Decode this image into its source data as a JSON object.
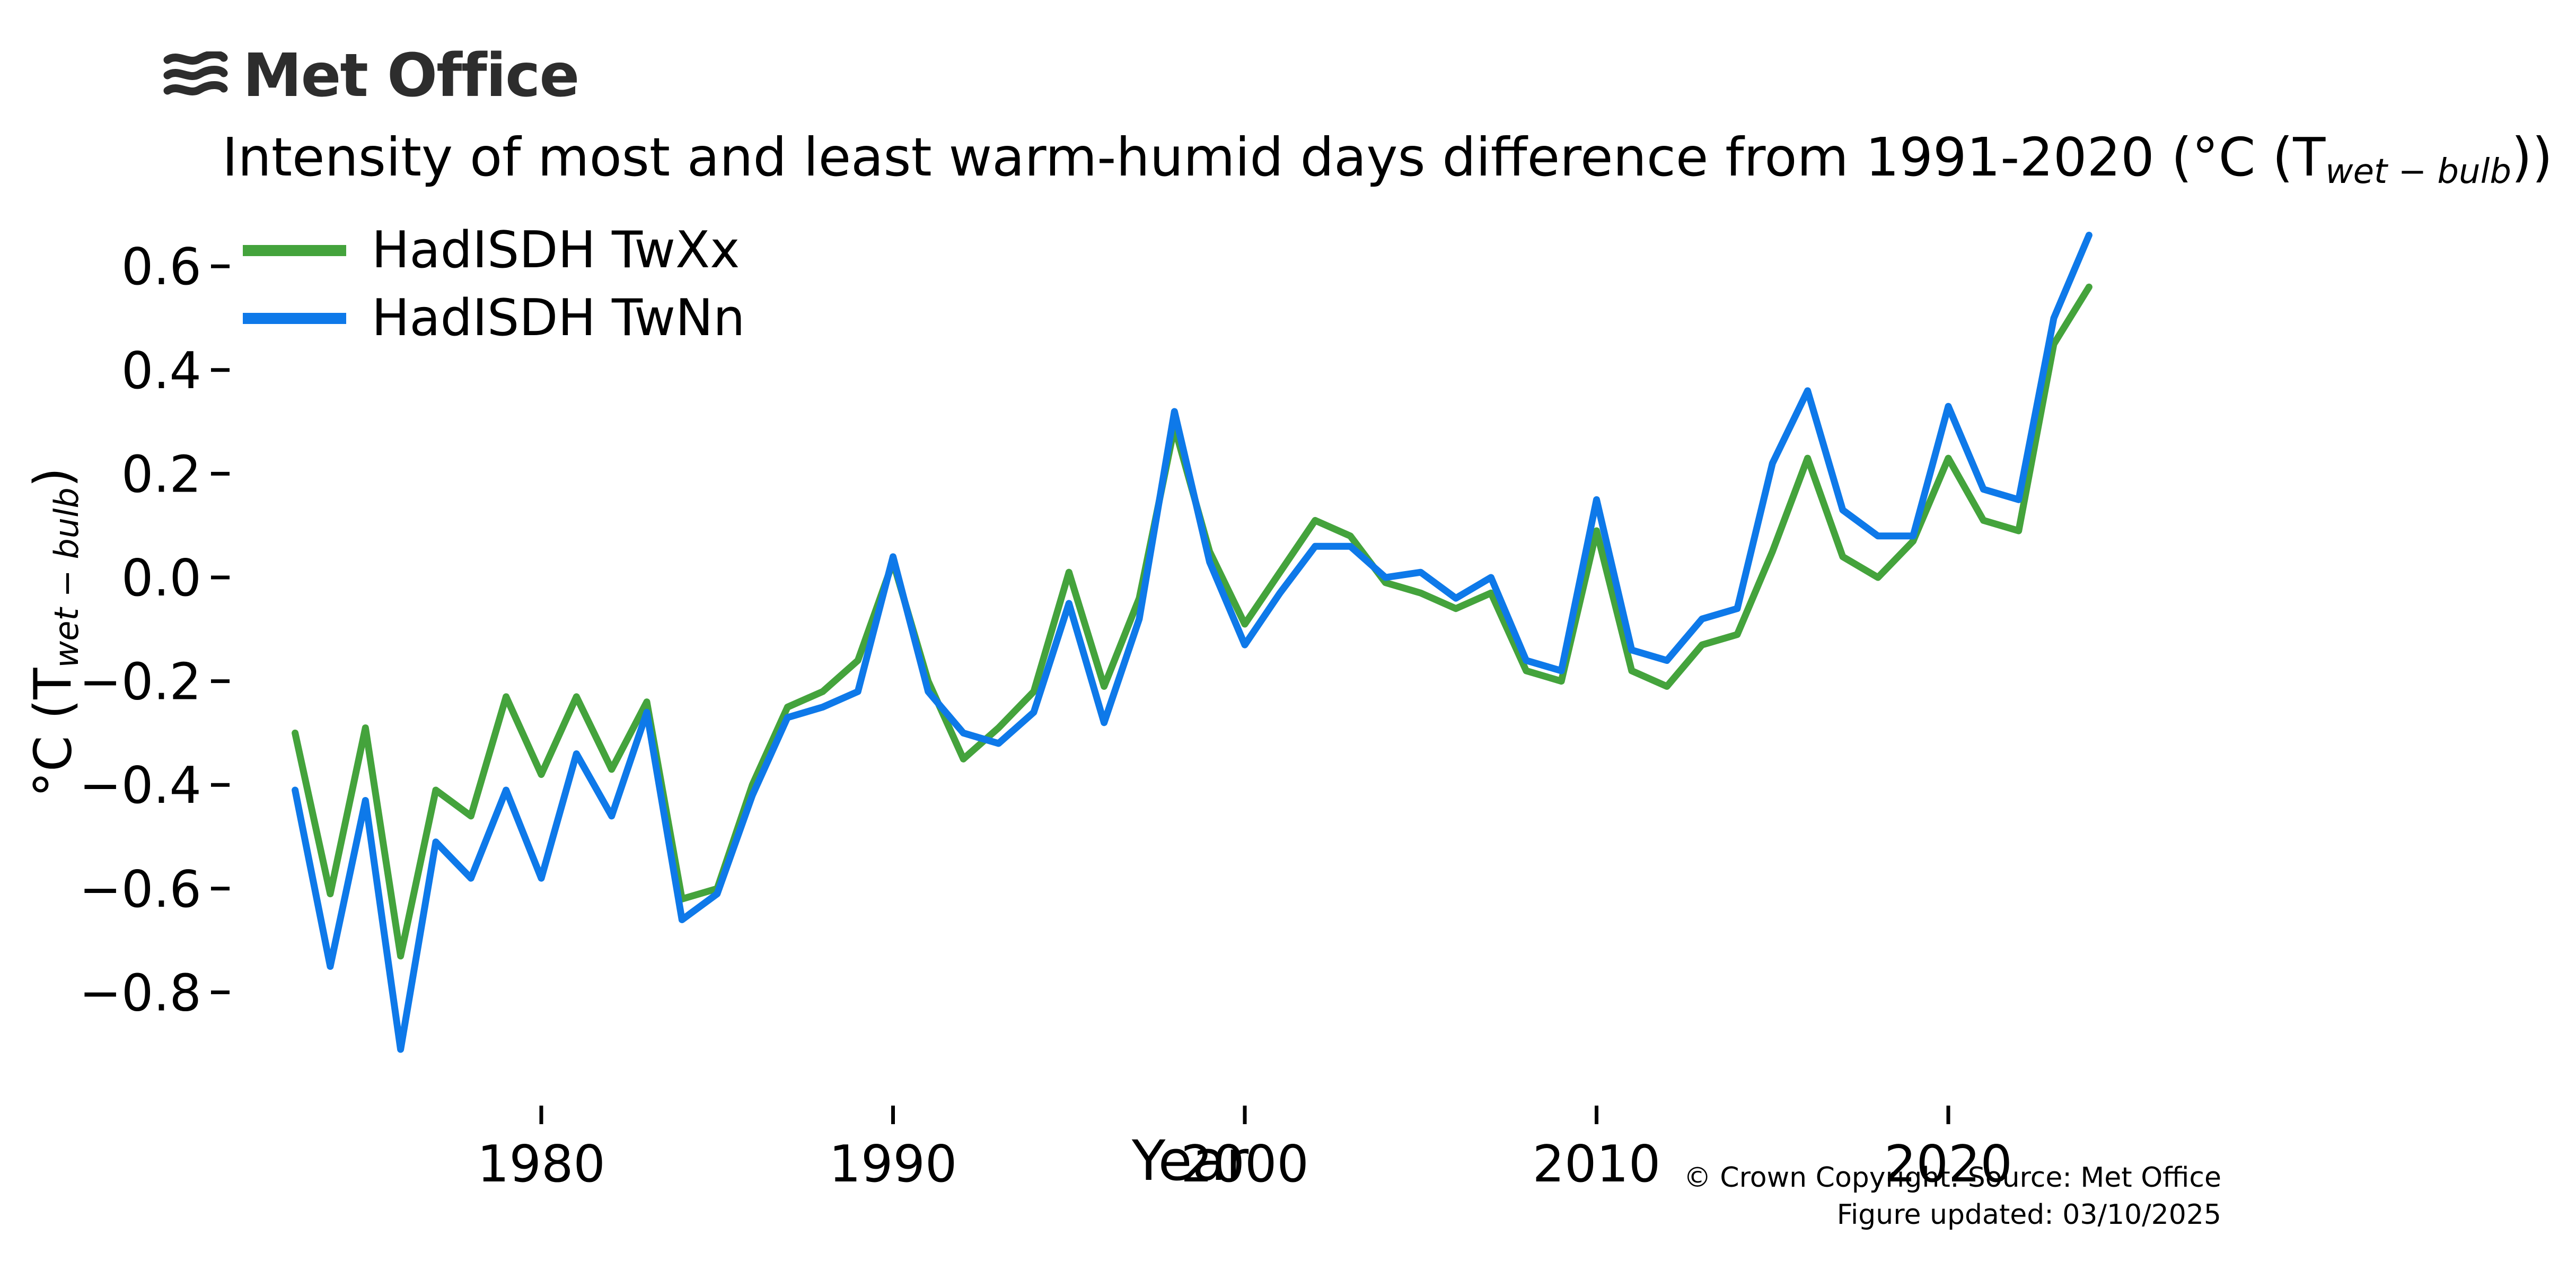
{
  "logo": {
    "text": "Met Office"
  },
  "title": {
    "prefix": "Intensity of most and least warm-humid days difference from 1991-2020 (°C (T",
    "subscript": "wet − bulb",
    "suffix": "))"
  },
  "ylabel": {
    "prefix": "°C (T",
    "subscript": "wet − bulb",
    "suffix": ")"
  },
  "xlabel": "Year",
  "footer": {
    "line1": "© Crown Copyright. Source: Met Office",
    "line2": "Figure updated: 03/10/2025"
  },
  "colors": {
    "green": "#44a33c",
    "blue": "#0e79e9",
    "logo": "#2d2d2d",
    "tick": "#000000"
  },
  "chart_data": {
    "type": "line",
    "title": "Intensity of most and least warm-humid days difference from 1991-2020 (°C (T_wet-bulb))",
    "xlabel": "Year",
    "ylabel": "°C (T_wet-bulb)",
    "grid": false,
    "legend_position": "upper left",
    "xlim": [
      1971.5,
      2025.8
    ],
    "ylim": [
      -0.97,
      0.72
    ],
    "xticks": {
      "values": [
        1980,
        1990,
        2000,
        2010,
        2020
      ],
      "labels": [
        "1980",
        "1990",
        "2000",
        "2010",
        "2020"
      ]
    },
    "yticks": {
      "values": [
        0.6,
        0.4,
        0.2,
        0.0,
        -0.2,
        -0.4,
        -0.6,
        -0.8
      ],
      "labels": [
        "0.6",
        "0.4",
        "0.2",
        "0.0",
        "−0.2",
        "−0.4",
        "−0.6",
        "−0.8"
      ]
    },
    "x": [
      1973,
      1974,
      1975,
      1976,
      1977,
      1978,
      1979,
      1980,
      1981,
      1982,
      1983,
      1984,
      1985,
      1986,
      1987,
      1988,
      1989,
      1990,
      1991,
      1992,
      1993,
      1994,
      1995,
      1996,
      1997,
      1998,
      1999,
      2000,
      2001,
      2002,
      2003,
      2004,
      2005,
      2006,
      2007,
      2008,
      2009,
      2010,
      2011,
      2012,
      2013,
      2014,
      2015,
      2016,
      2017,
      2018,
      2019,
      2020,
      2021,
      2022,
      2023,
      2024
    ],
    "series": [
      {
        "name": "HadISDH TwXx",
        "color": "#44a33c",
        "values": [
          -0.3,
          -0.61,
          -0.29,
          -0.73,
          -0.41,
          -0.46,
          -0.23,
          -0.38,
          -0.23,
          -0.37,
          -0.24,
          -0.62,
          -0.6,
          -0.4,
          -0.25,
          -0.22,
          -0.16,
          0.03,
          -0.2,
          -0.35,
          -0.29,
          -0.22,
          0.01,
          -0.21,
          -0.04,
          0.29,
          0.05,
          -0.09,
          0.01,
          0.11,
          0.08,
          -0.01,
          -0.03,
          -0.06,
          -0.03,
          -0.18,
          -0.2,
          0.09,
          -0.18,
          -0.21,
          -0.13,
          -0.11,
          0.05,
          0.23,
          0.04,
          0.0,
          0.07,
          0.23,
          0.11,
          0.09,
          0.45,
          0.56
        ]
      },
      {
        "name": "HadISDH TwNn",
        "color": "#0e79e9",
        "values": [
          -0.41,
          -0.75,
          -0.43,
          -0.91,
          -0.51,
          -0.58,
          -0.41,
          -0.58,
          -0.34,
          -0.46,
          -0.26,
          -0.66,
          -0.61,
          -0.42,
          -0.27,
          -0.25,
          -0.22,
          0.04,
          -0.22,
          -0.3,
          -0.32,
          -0.26,
          -0.05,
          -0.28,
          -0.08,
          0.32,
          0.03,
          -0.13,
          -0.03,
          0.06,
          0.06,
          0.0,
          0.01,
          -0.04,
          0.0,
          -0.16,
          -0.18,
          0.15,
          -0.14,
          -0.16,
          -0.08,
          -0.06,
          0.22,
          0.36,
          0.13,
          0.08,
          0.08,
          0.33,
          0.17,
          0.15,
          0.5,
          0.66
        ]
      }
    ]
  }
}
